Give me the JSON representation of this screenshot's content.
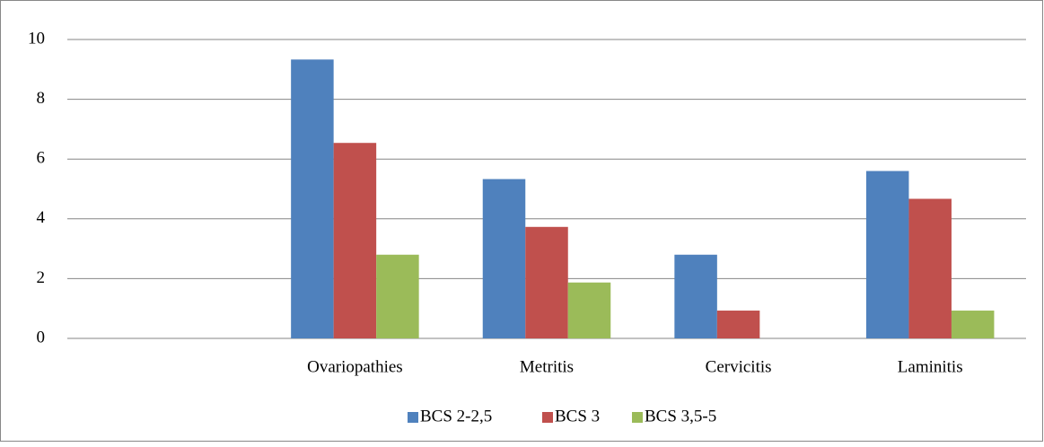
{
  "chart_data": {
    "type": "bar",
    "categories": [
      null,
      "Ovariopathies",
      "Metritis",
      "Cervicitis",
      "Laminitis"
    ],
    "series": [
      {
        "name": "BCS 2-2,5",
        "color": "#4f81bd",
        "values": [
          null,
          9.33,
          5.33,
          2.8,
          5.6
        ]
      },
      {
        "name": "BCS 3",
        "color": "#c0504d",
        "values": [
          null,
          6.54,
          3.73,
          0.93,
          4.67
        ]
      },
      {
        "name": "BCS 3,5-5",
        "color": "#9bbb59",
        "values": [
          null,
          2.8,
          1.87,
          0,
          0.93
        ]
      }
    ],
    "ylim": [
      0,
      10
    ],
    "yticks": [
      0,
      2,
      4,
      6,
      8,
      10
    ],
    "grid": true,
    "legend": "bottom"
  }
}
